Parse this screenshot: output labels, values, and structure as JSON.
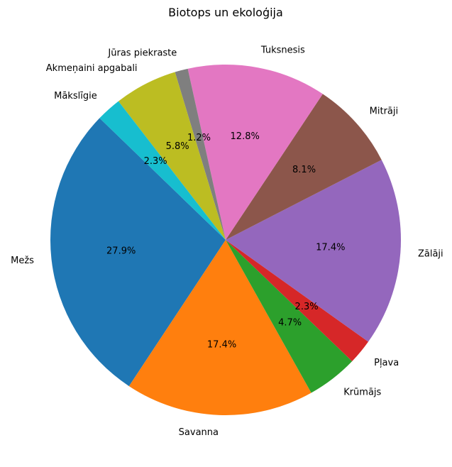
{
  "chart_data": {
    "type": "pie",
    "title": "Biotops un ekoloģija",
    "start_angle_deg": 136,
    "direction": "counterclockwise",
    "slices": [
      {
        "label": "Mežs",
        "value": 27.9,
        "pct_label": "27.9%",
        "color": "#1f77b4"
      },
      {
        "label": "Savanna",
        "value": 17.4,
        "pct_label": "17.4%",
        "color": "#ff7f0e"
      },
      {
        "label": "Krūmājs",
        "value": 4.7,
        "pct_label": "4.7%",
        "color": "#2ca02c"
      },
      {
        "label": "Pļava",
        "value": 2.3,
        "pct_label": "2.3%",
        "color": "#d62728"
      },
      {
        "label": "Zālāji",
        "value": 17.4,
        "pct_label": "17.4%",
        "color": "#9467bd"
      },
      {
        "label": "Mitrāji",
        "value": 8.1,
        "pct_label": "8.1%",
        "color": "#8c564b"
      },
      {
        "label": "Tuksnesis",
        "value": 12.8,
        "pct_label": "12.8%",
        "color": "#e377c2"
      },
      {
        "label": "Jūras piekraste",
        "value": 1.2,
        "pct_label": "1.2%",
        "color": "#7f7f7f"
      },
      {
        "label": "Akmeņaini apgabali",
        "value": 5.8,
        "pct_label": "5.8%",
        "color": "#bcbd22"
      },
      {
        "label": "Mākslīgie",
        "value": 2.3,
        "pct_label": "2.3%",
        "color": "#17becf"
      }
    ]
  }
}
